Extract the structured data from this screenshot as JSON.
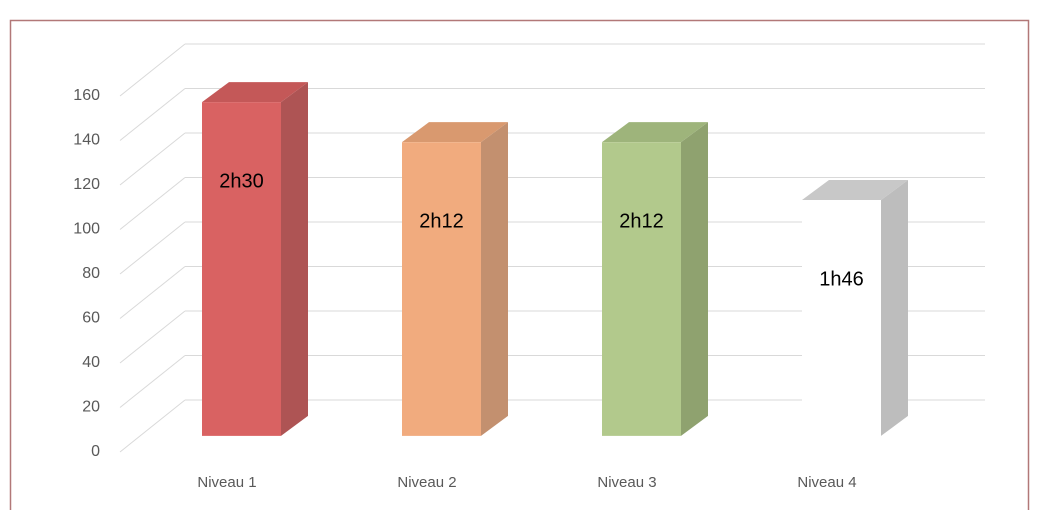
{
  "chart_data": {
    "type": "bar3d",
    "categories": [
      "Niveau 1",
      "Niveau 2",
      "Niveau 3",
      "Niveau 4"
    ],
    "values": [
      150,
      132,
      132,
      106
    ],
    "value_labels": [
      "2h30",
      "2h12",
      "2h12",
      "1h46"
    ],
    "colors": [
      {
        "front": "#d96262",
        "side": "#ae5454",
        "top": "#c45858"
      },
      {
        "front": "#f1ab7e",
        "side": "#c3906f",
        "top": "#d9996f"
      },
      {
        "front": "#b2c98c",
        "side": "#8fa26f",
        "top": "#9eb47b"
      },
      {
        "front": "#ffffff",
        "side": "#bdbdbd",
        "top": "#c8c8c8"
      }
    ],
    "ylim": [
      0,
      160
    ],
    "yticks": [
      0,
      20,
      40,
      60,
      80,
      100,
      120,
      140,
      160
    ],
    "grid": true
  }
}
